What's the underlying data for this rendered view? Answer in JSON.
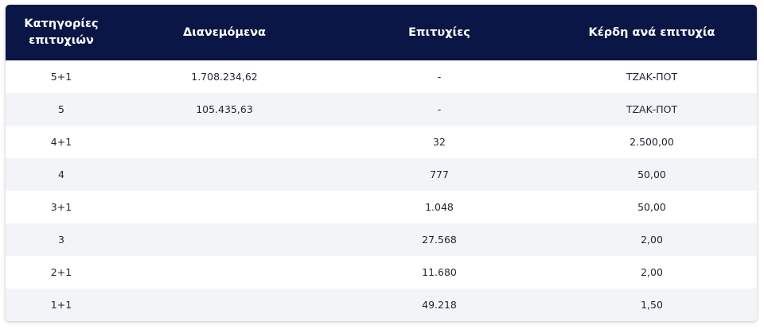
{
  "table": {
    "headers": [
      "Κατηγορίες επιτυχιών",
      "Διανεμόμενα",
      "Επιτυχίες",
      "Κέρδη ανά επιτυχία"
    ],
    "rows": [
      [
        "5+1",
        "1.708.234,62",
        "-",
        "ΤΖΑΚ-ΠΟΤ"
      ],
      [
        "5",
        "105.435,63",
        "-",
        "ΤΖΑΚ-ΠΟΤ"
      ],
      [
        "4+1",
        "",
        "32",
        "2.500,00"
      ],
      [
        "4",
        "",
        "777",
        "50,00"
      ],
      [
        "3+1",
        "",
        "1.048",
        "50,00"
      ],
      [
        "3",
        "",
        "27.568",
        "2,00"
      ],
      [
        "2+1",
        "",
        "11.680",
        "2,00"
      ],
      [
        "1+1",
        "",
        "49.218",
        "1,50"
      ]
    ]
  },
  "colors": {
    "header_bg": "#0a1646",
    "header_text": "#ffffff",
    "row_alt_bg": "#f3f4f7",
    "cell_text": "#1f2430"
  }
}
